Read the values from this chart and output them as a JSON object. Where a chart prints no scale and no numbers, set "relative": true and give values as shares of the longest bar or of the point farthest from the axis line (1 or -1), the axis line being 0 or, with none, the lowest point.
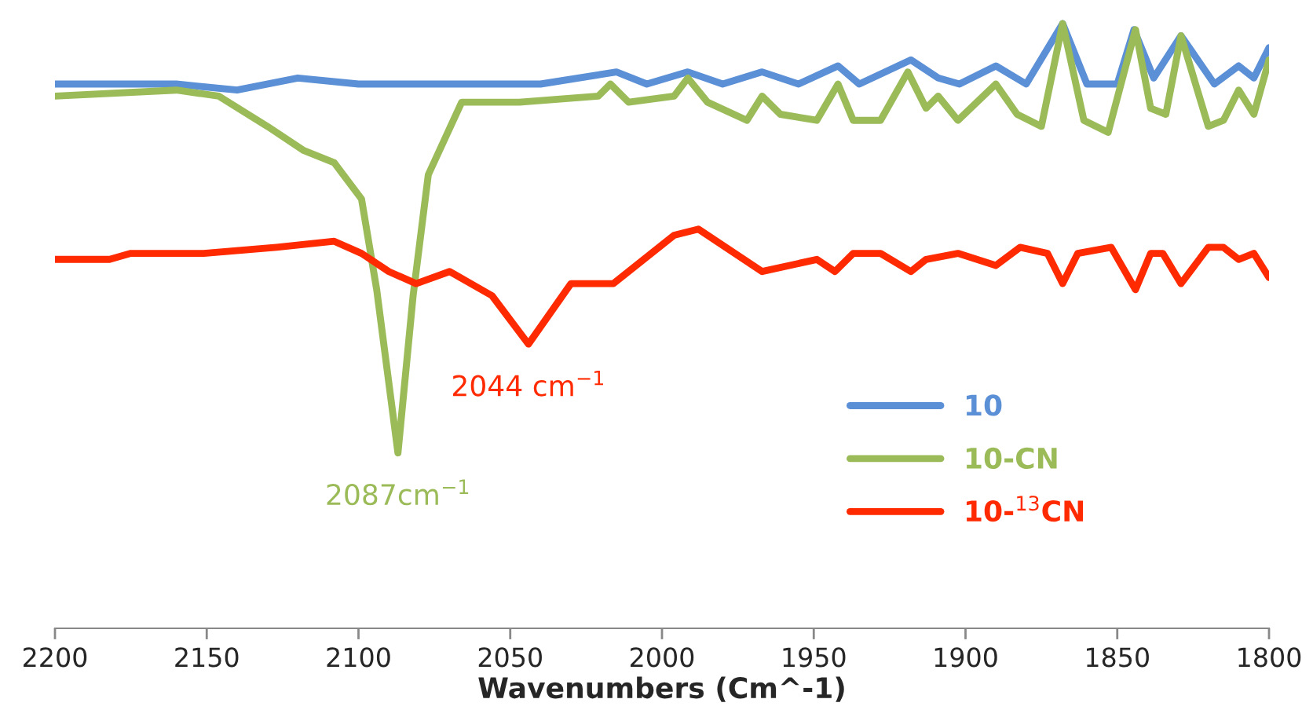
{
  "chart_data": {
    "type": "line",
    "relative": true,
    "xlabel": "Wavenumbers (Cm^-1)",
    "xlim": [
      2200,
      1800
    ],
    "xticks": [
      2200,
      2150,
      2100,
      2050,
      2000,
      1950,
      1900,
      1850,
      1800
    ],
    "grid": false,
    "legend": "bottom right",
    "line_style": "solid",
    "marker": "none",
    "series": [
      {
        "name": "10",
        "color": "#5b8fd6",
        "x": [
          2200,
          2180,
          2160,
          2140,
          2120,
          2100,
          2060,
          2040,
          2015,
          2005,
          1991.5,
          1980,
          1967,
          1955,
          1942,
          1935,
          1918,
          1909,
          1902,
          1890,
          1880,
          1868,
          1860,
          1850,
          1844.5,
          1838,
          1829,
          1818,
          1810,
          1805,
          1800
        ],
        "values": [
          0.9,
          0.9,
          0.9,
          0.89,
          0.91,
          0.9,
          0.9,
          0.9,
          0.92,
          0.9,
          0.92,
          0.9,
          0.92,
          0.9,
          0.93,
          0.9,
          0.94,
          0.91,
          0.9,
          0.93,
          0.9,
          1.0,
          0.9,
          0.9,
          0.99,
          0.91,
          0.98,
          0.9,
          0.93,
          0.91,
          0.96
        ]
      },
      {
        "name": "10-CN",
        "color": "#9bbb59",
        "x": [
          2200,
          2160,
          2146,
          2130,
          2118,
          2108,
          2099,
          2094,
          2087,
          2082,
          2077,
          2066,
          2059,
          2047,
          2021,
          2017,
          2011,
          1996,
          1991.5,
          1985,
          1972,
          1967,
          1961,
          1949,
          1942,
          1937,
          1928,
          1919,
          1913,
          1909,
          1902.5,
          1890,
          1883,
          1875,
          1868,
          1861,
          1853,
          1844,
          1839,
          1834,
          1829,
          1820,
          1815,
          1810,
          1805,
          1800
        ],
        "values": [
          0.88,
          0.89,
          0.88,
          0.83,
          0.79,
          0.77,
          0.71,
          0.56,
          0.29,
          0.55,
          0.75,
          0.87,
          0.87,
          0.87,
          0.88,
          0.9,
          0.87,
          0.88,
          0.91,
          0.87,
          0.84,
          0.88,
          0.85,
          0.84,
          0.9,
          0.84,
          0.84,
          0.92,
          0.86,
          0.88,
          0.84,
          0.9,
          0.85,
          0.83,
          1.0,
          0.84,
          0.82,
          0.99,
          0.86,
          0.85,
          0.98,
          0.83,
          0.84,
          0.89,
          0.85,
          0.94
        ]
      },
      {
        "name": "10-$^{13}$CN",
        "color": "#ff2a00",
        "x": [
          2200,
          2182,
          2175,
          2168,
          2151,
          2127,
          2108,
          2099,
          2090,
          2081,
          2070,
          2056,
          2044,
          2030,
          2016,
          1996,
          1988,
          1967,
          1949,
          1943,
          1937,
          1928,
          1918,
          1913,
          1902.5,
          1890,
          1882,
          1873,
          1868,
          1863,
          1852,
          1844,
          1839,
          1835,
          1829,
          1820,
          1815,
          1810,
          1805,
          1800
        ],
        "values": [
          0.61,
          0.61,
          0.62,
          0.62,
          0.62,
          0.63,
          0.64,
          0.62,
          0.59,
          0.57,
          0.59,
          0.55,
          0.47,
          0.57,
          0.57,
          0.65,
          0.66,
          0.59,
          0.61,
          0.59,
          0.62,
          0.62,
          0.59,
          0.61,
          0.62,
          0.6,
          0.63,
          0.62,
          0.57,
          0.62,
          0.63,
          0.56,
          0.62,
          0.62,
          0.57,
          0.63,
          0.63,
          0.61,
          0.62,
          0.58
        ]
      }
    ],
    "annotations": [
      {
        "text": "2087cm$^{−1}$",
        "x": 2087,
        "y": 0.29
      },
      {
        "text": "2044 cm$^{−1}$",
        "x": 2044,
        "y": 0.47
      }
    ]
  }
}
